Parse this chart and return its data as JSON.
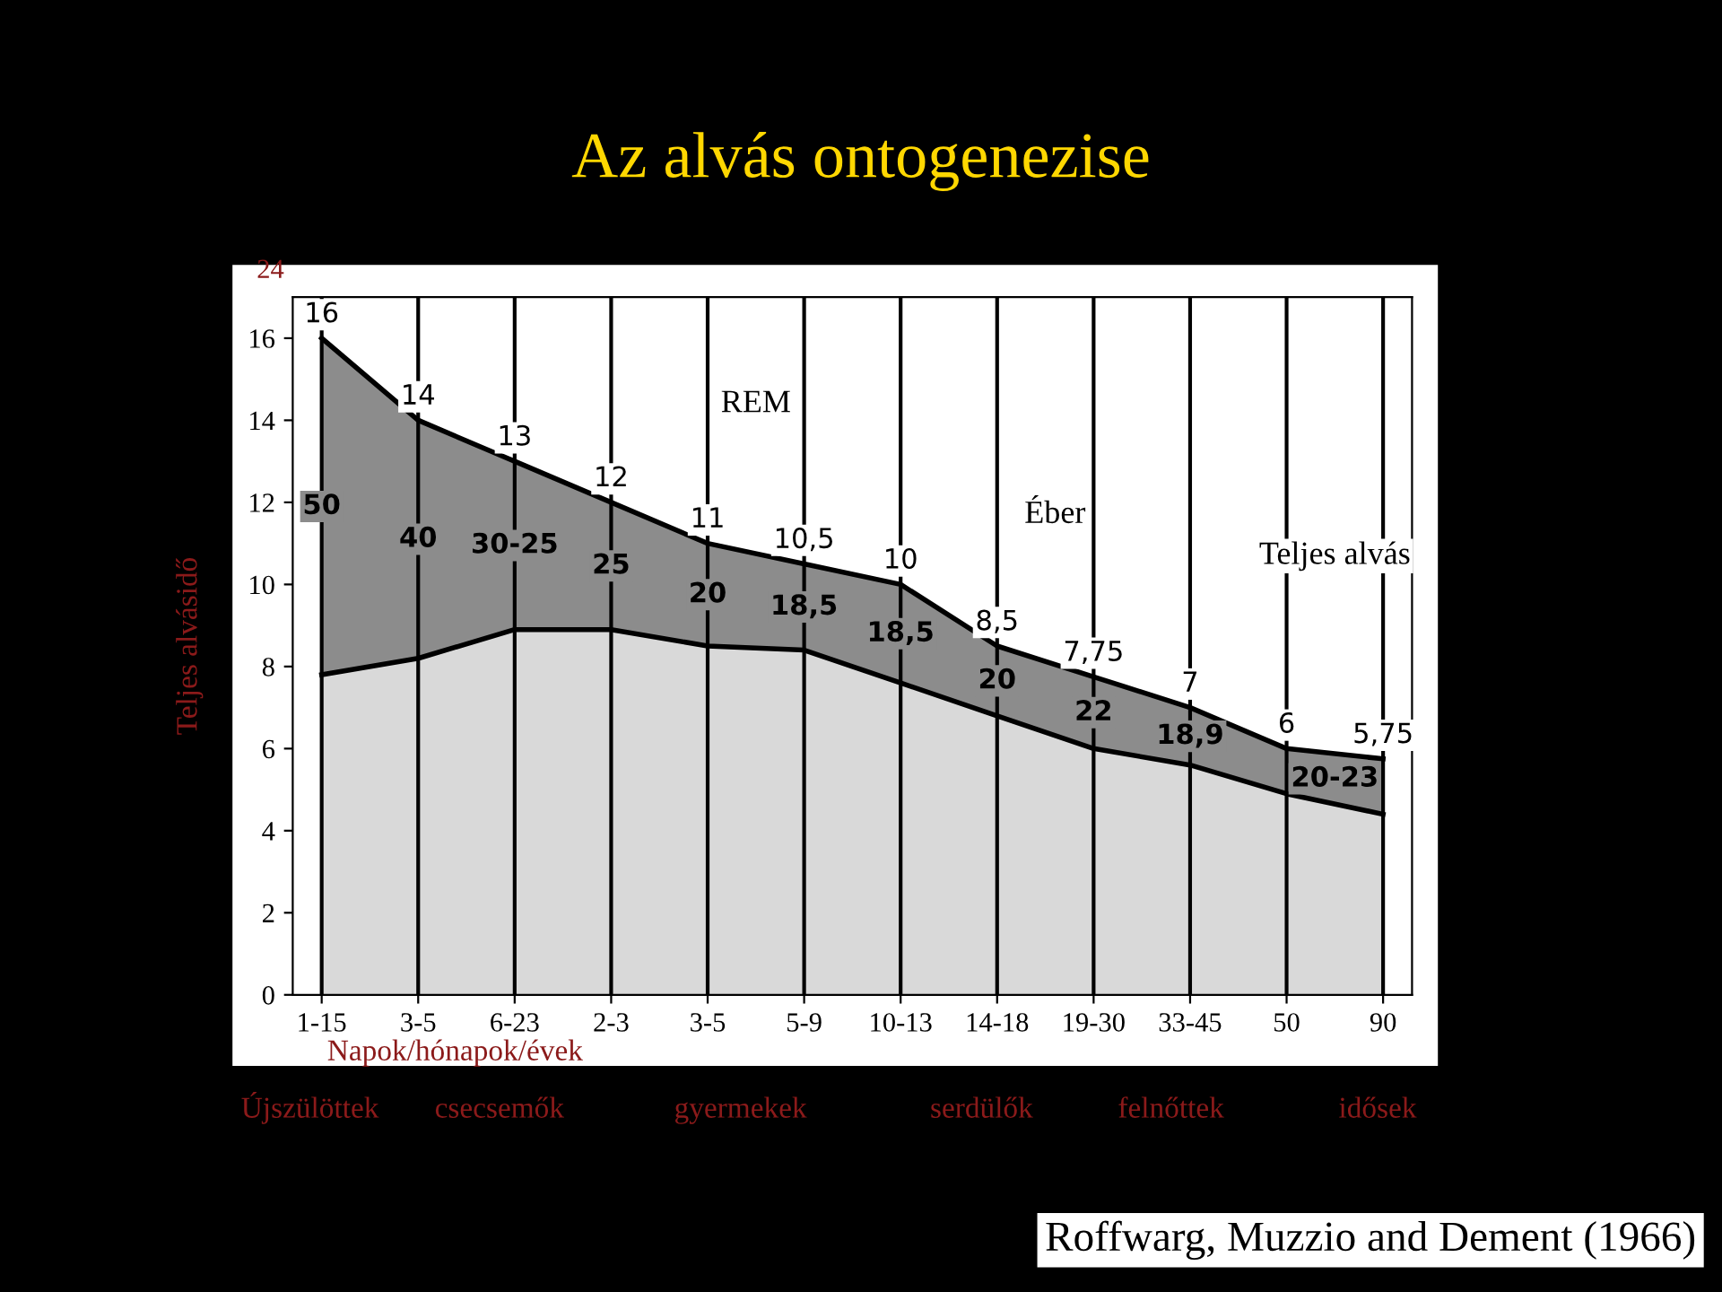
{
  "chart_data": {
    "type": "area",
    "stacked": true,
    "title": "Az alvás ontogenezise",
    "ylabel": "Teljes alvásidő",
    "xlabel": "Napok/hónapok/évek",
    "categories": [
      "1-15",
      "3-5",
      "6-23",
      "2-3",
      "3-5",
      "5-9",
      "10-13",
      "14-18",
      "19-30",
      "33-45",
      "50",
      "90"
    ],
    "series": [
      {
        "color": "#d9d9d9",
        "values": [
          7.8,
          8.2,
          8.9,
          8.9,
          8.5,
          8.4,
          7.6,
          6.8,
          6.0,
          5.6,
          4.9,
          4.4
        ]
      },
      {
        "color": "#8c8c8c",
        "values": [
          8.2,
          5.8,
          4.1,
          3.1,
          2.5,
          2.1,
          2.4,
          1.7,
          1.75,
          1.4,
          1.1,
          1.35
        ]
      }
    ],
    "totals": [
      "16",
      "14",
      "13",
      "12",
      "11",
      "10,5",
      "10",
      "8,5",
      "7,75",
      "7",
      "6",
      "5,75"
    ],
    "ylim": [
      0,
      17
    ],
    "yticks": [
      0,
      2,
      4,
      6,
      8,
      10,
      12,
      14,
      16
    ],
    "grid": "x",
    "legend": false,
    "annotations": [
      "REM",
      "Éber",
      "Teljes alvás",
      "24",
      "Újszülöttek",
      "csecsemők",
      "gyermekek",
      "serdülők",
      "felnőttek",
      "idősek",
      "Roffwarg, Muzzio and Dement (1966)",
      "50",
      "40",
      "30-25",
      "25",
      "20",
      "18,5",
      "18,5",
      "20",
      "22",
      "18,9",
      "20-23"
    ]
  }
}
